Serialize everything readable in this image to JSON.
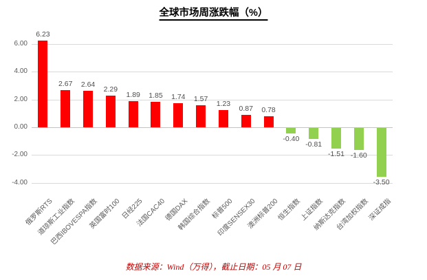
{
  "title": "全球市场周涨跌幅（%）",
  "footer": "数据来源：Wind（万得），截止日期：05 月 07 日",
  "colors": {
    "positive_bar": "#ff0000",
    "negative_bar": "#92d050",
    "gridline": "#d9d9d9",
    "axis_text": "#595959",
    "footer_text": "#c00000"
  },
  "chart_data": {
    "type": "bar",
    "title": "全球市场周涨跌幅（%）",
    "xlabel": "",
    "ylabel": "",
    "grid": true,
    "legend": false,
    "ylim": [
      -4.5,
      6.5
    ],
    "y_ticks": [
      6,
      4,
      2,
      0,
      -2,
      -4
    ],
    "y_tick_labels": [
      "6.00",
      "4.00",
      "2.00",
      "0.00",
      "-2.00",
      "-4.00"
    ],
    "categories": [
      "俄罗斯RTS",
      "道琼斯工业指数",
      "巴西IBOVESPA指数",
      "英国富时100",
      "日经225",
      "法国CAC40",
      "德国DAX",
      "韩国综合指数",
      "标普500",
      "印度SENSEX30",
      "澳洲标普200",
      "恒生指数",
      "上证指数",
      "纳斯达克指数",
      "台湾加权指数",
      "深证成指"
    ],
    "values": [
      6.23,
      2.67,
      2.64,
      2.29,
      1.89,
      1.85,
      1.74,
      1.57,
      1.23,
      0.87,
      0.78,
      -0.4,
      -0.81,
      -1.51,
      -1.6,
      -3.5
    ],
    "value_labels": [
      "6.23",
      "2.67",
      "2.64",
      "2.29",
      "1.89",
      "1.85",
      "1.74",
      "1.57",
      "1.23",
      "0.87",
      "0.78",
      "-0.40",
      "-0.81",
      "-1.51",
      "-1.60",
      "-3.50"
    ]
  }
}
